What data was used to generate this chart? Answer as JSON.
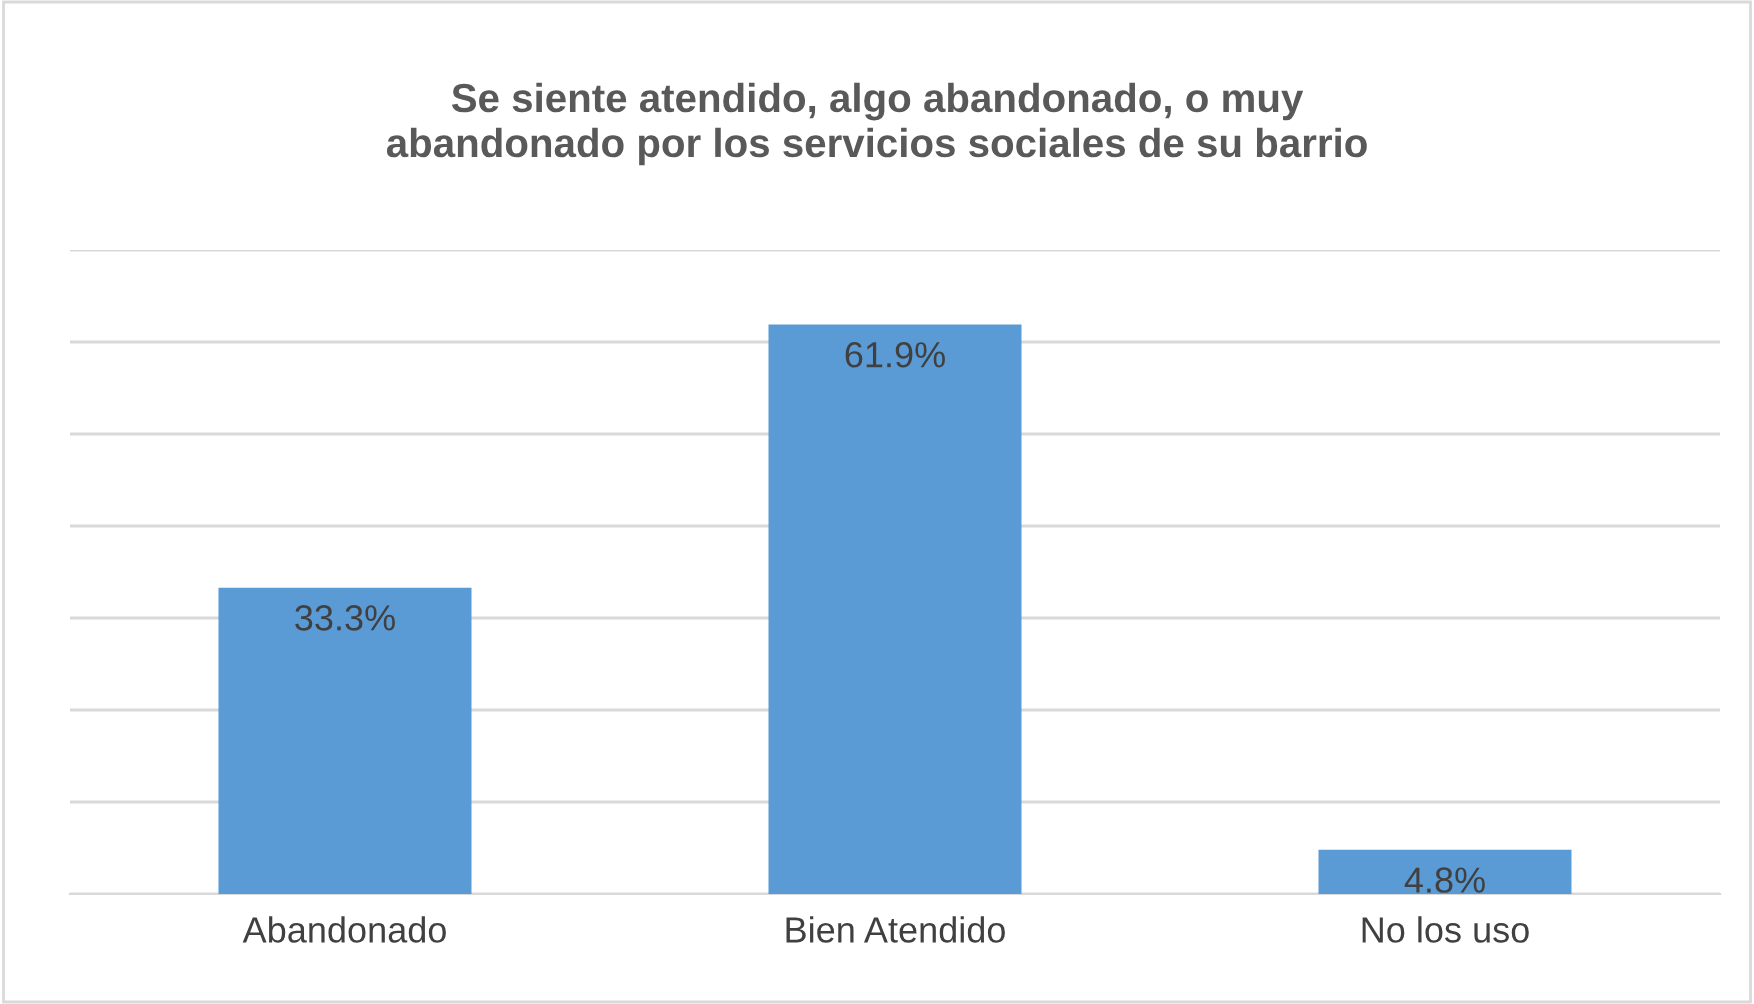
{
  "chart_data": {
    "type": "bar",
    "title": "Se siente atendido, algo abandonado, o muy\nabandonado por los servicios sociales de su barrio",
    "categories": [
      "Abandonado",
      "Bien Atendido",
      "No los uso"
    ],
    "values": [
      33.3,
      61.9,
      4.8
    ],
    "value_labels": [
      "33.3%",
      "61.9%",
      "4.8%"
    ],
    "color": "#5b9bd5",
    "ylim": [
      0,
      70
    ],
    "yticks": [
      {
        "value": 0,
        "label": null
      },
      {
        "value": 10,
        "label": null
      },
      {
        "value": 20,
        "label": null
      },
      {
        "value": 30,
        "label": null
      },
      {
        "value": 40,
        "label": null
      },
      {
        "value": 50,
        "label": null
      },
      {
        "value": 60,
        "label": null
      },
      {
        "value": 70,
        "label": null
      }
    ],
    "tick_labels": "x",
    "grid": "y"
  }
}
